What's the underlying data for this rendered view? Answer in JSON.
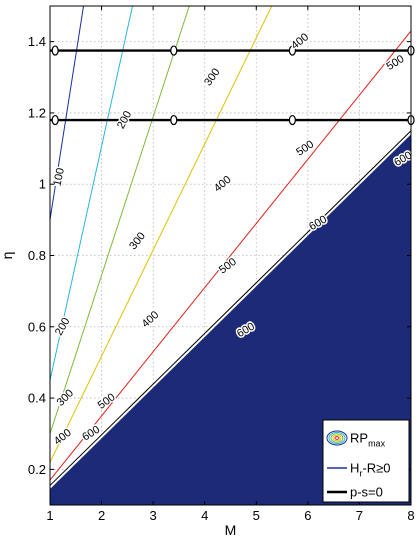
{
  "chart_data": {
    "type": "line",
    "xlabel": "M",
    "ylabel": "η",
    "xlim": [
      1,
      8
    ],
    "ylim": [
      0.1,
      1.5
    ],
    "xticks": [
      1,
      2,
      3,
      4,
      5,
      6,
      7,
      8
    ],
    "yticks": [
      0.2,
      0.4,
      0.6,
      0.8,
      1,
      1.2,
      1.4
    ],
    "ytick_labels": [
      "0.2",
      "0.4",
      "0.6",
      "0.8",
      "1",
      "1.2",
      "1.4"
    ],
    "grid": true,
    "contour_levels": [
      {
        "level": "100",
        "color": "#1a2f9c",
        "points": [
          [
            1,
            0.9
          ],
          [
            1.65,
            1.5
          ]
        ]
      },
      {
        "level": "200",
        "color": "#29b6d9",
        "points": [
          [
            1,
            0.45
          ],
          [
            2.6,
            1.5
          ]
        ]
      },
      {
        "level": "300",
        "color": "#7dba3a",
        "points": [
          [
            1,
            0.3
          ],
          [
            3.7,
            1.5
          ]
        ]
      },
      {
        "level": "400",
        "color": "#e0c200",
        "points": [
          [
            1,
            0.22
          ],
          [
            5.3,
            1.5
          ]
        ]
      },
      {
        "level": "500",
        "color": "#e3211b",
        "points": [
          [
            1,
            0.17
          ],
          [
            8,
            1.43
          ]
        ]
      },
      {
        "level": "600",
        "color": "#000000",
        "points": [
          [
            1,
            0.155
          ],
          [
            8,
            1.15
          ]
        ]
      }
    ],
    "contour_labels": [
      {
        "text": "100",
        "x": 1.18,
        "y": 1.02,
        "angle": -78
      },
      {
        "text": "200",
        "x": 2.45,
        "y": 1.18,
        "angle": -62
      },
      {
        "text": "300",
        "x": 4.15,
        "y": 1.3,
        "angle": -55
      },
      {
        "text": "400",
        "x": 5.85,
        "y": 1.4,
        "angle": -38
      },
      {
        "text": "500",
        "x": 7.7,
        "y": 1.34,
        "angle": -32
      },
      {
        "text": "600",
        "x": 7.85,
        "y": 1.07,
        "angle": -30
      },
      {
        "text": "200",
        "x": 1.25,
        "y": 0.6,
        "angle": -60
      },
      {
        "text": "300",
        "x": 2.7,
        "y": 0.84,
        "angle": -52
      },
      {
        "text": "400",
        "x": 4.35,
        "y": 1.0,
        "angle": -40
      },
      {
        "text": "500",
        "x": 5.95,
        "y": 1.1,
        "angle": -34
      },
      {
        "text": "300",
        "x": 1.3,
        "y": 0.4,
        "angle": -45
      },
      {
        "text": "400",
        "x": 2.95,
        "y": 0.62,
        "angle": -42
      },
      {
        "text": "500",
        "x": 4.45,
        "y": 0.77,
        "angle": -36
      },
      {
        "text": "600",
        "x": 6.2,
        "y": 0.89,
        "angle": -30
      },
      {
        "text": "400",
        "x": 1.25,
        "y": 0.29,
        "angle": -38
      },
      {
        "text": "500",
        "x": 2.1,
        "y": 0.39,
        "angle": -36
      },
      {
        "text": "600",
        "x": 4.8,
        "y": 0.59,
        "angle": -30
      },
      {
        "text": "600",
        "x": 1.8,
        "y": 0.3,
        "angle": -32
      }
    ],
    "infeasible_region": {
      "color": "#1c2a78",
      "boundary": [
        [
          1,
          0.145
        ],
        [
          8,
          1.14
        ]
      ]
    },
    "constraint_lines": [
      {
        "y": 1.375,
        "x_range": [
          1,
          8
        ],
        "markers": [
          1.1,
          3.4,
          5.7,
          8
        ]
      },
      {
        "y": 1.18,
        "x_range": [
          1,
          8
        ],
        "markers": [
          1.1,
          3.4,
          5.7,
          8
        ]
      }
    ],
    "legend": {
      "placement": "bottom-right",
      "entries": [
        {
          "main": "RP",
          "sub": "max",
          "kind": "contour"
        },
        {
          "main": "H",
          "sub": "r",
          "rest": "-R≥0",
          "kind": "line",
          "color": "#1a2f9c"
        },
        {
          "main": "p-s=0",
          "kind": "line",
          "color": "#000000"
        }
      ]
    }
  }
}
